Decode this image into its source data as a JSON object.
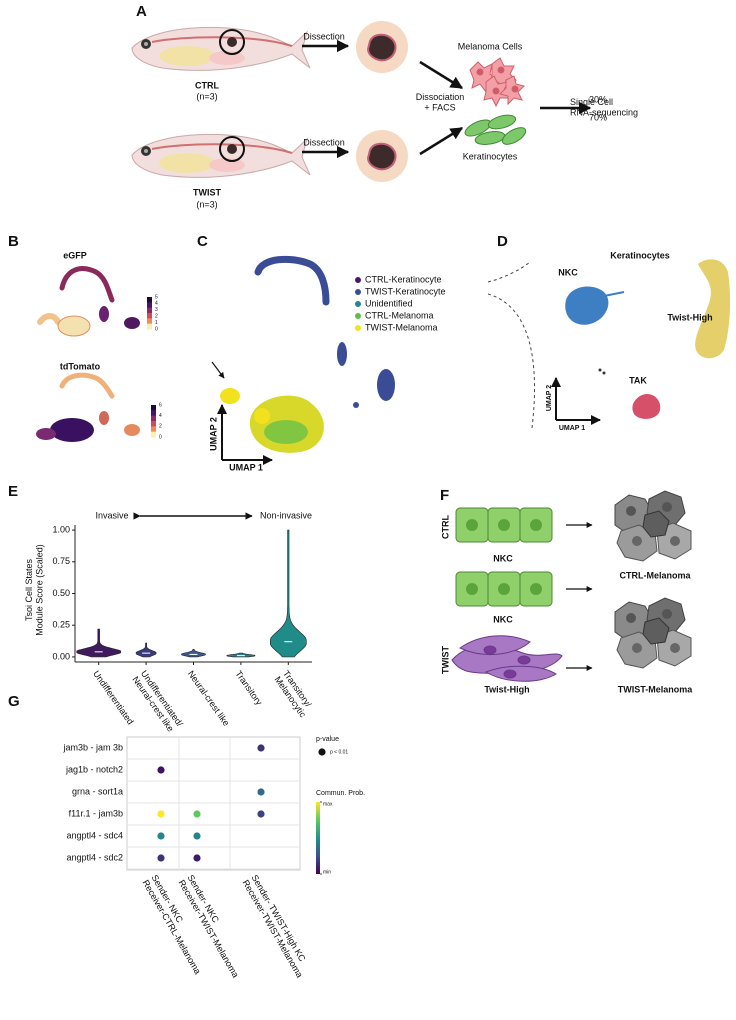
{
  "figure": {
    "A": {
      "label": "A",
      "ctrl": "CTRL",
      "ctrl_n": "(n=3)",
      "twist": "TWIST",
      "twist_n": "(n=3)",
      "dissection_1": "Dissection",
      "dissection_2": "Dissection",
      "dissociation": [
        "Dissociation",
        "+ FACS"
      ],
      "melanoma_cells": "Melanoma Cells",
      "keratinocytes": "Keratinocytes",
      "pct_melanoma": "30%",
      "pct_keratinocytes": "70%",
      "sequencing": [
        "Single Cell",
        "RNA-sequencing"
      ]
    },
    "B": {
      "label": "B",
      "egfp": "eGFP",
      "tdtomato": "tdTomato",
      "egfp_scale": [
        "5",
        "4",
        "3",
        "2",
        "1",
        "0"
      ],
      "tdtomato_scale": [
        "6",
        "4",
        "2",
        "0"
      ]
    },
    "C": {
      "label": "C",
      "umap1": "UMAP 1",
      "umap2": "UMAP 2",
      "legend": [
        {
          "name": "CTRL-Keratinocyte",
          "color": "#4a1868"
        },
        {
          "name": "TWIST-Keratinocyte",
          "color": "#3a4c96"
        },
        {
          "name": "Unidentified",
          "color": "#23898c"
        },
        {
          "name": "CTRL-Melanoma",
          "color": "#5cbf4a"
        },
        {
          "name": "TWIST-Melanoma",
          "color": "#f2e21e"
        }
      ]
    },
    "D": {
      "label": "D",
      "title": "Keratinocytes",
      "nkc": "NKC",
      "twist_high": "Twist-High",
      "tak": "TAK",
      "umap1": "UMAP 1",
      "umap2": "UMAP 2"
    },
    "E": {
      "label": "E"
    },
    "F": {
      "label": "F",
      "ctrl": "CTRL",
      "twist": "TWIST",
      "nkc_1": "NKC",
      "nkc_2": "NKC",
      "twist_high": "Twist-High",
      "ctrl_melanoma": "CTRL-Melanoma",
      "twist_melanoma": "TWIST-Melanoma"
    },
    "G": {
      "label": "G"
    }
  },
  "chart_data": [
    {
      "type": "violin",
      "ylabel": [
        "Tsoi Cell States",
        "Module Score (Scaled)"
      ],
      "annotations": [
        "Invasive",
        "Non-invasive"
      ],
      "categories": [
        "Undifferentiated",
        [
          "Undifferentiated/",
          "Neural-crest like"
        ],
        "Neural-crest like",
        "Transitory",
        [
          "Transitory/",
          "Melanocytic"
        ]
      ],
      "values": [
        0.22,
        0.11,
        0.06,
        0.03,
        1.0
      ],
      "medians": [
        0.04,
        0.03,
        0.02,
        0.01,
        0.12
      ],
      "colors": [
        "#3f1a5c",
        "#3b3a7c",
        "#3a5890",
        "#2b7b8b",
        "#1f8c8a"
      ],
      "ylim": [
        -0.04,
        1.04
      ],
      "yticks": [
        {
          "value": 0,
          "label": "0.00"
        },
        {
          "value": 0.25,
          "label": "0.25"
        },
        {
          "value": 0.5,
          "label": "0.50"
        },
        {
          "value": 0.75,
          "label": "0.75"
        },
        {
          "value": 1,
          "label": "1.00"
        }
      ]
    },
    {
      "type": "dot",
      "categories": [
        "jam3b - jam 3b",
        "jag1b - notch2",
        "grna - sort1a",
        "f11r.1 - jam3b",
        "angptl4 - sdc4",
        "angptl4 - sdc2"
      ],
      "x_categories": [
        [
          "Sender- NKC",
          "Receiver-CTRL-Melanoma"
        ],
        [
          "Sender- NKC",
          "Receiver-TWIST-Melanoma"
        ],
        [
          "Sender- TWIST-High KC",
          "Receiver-TWIST-Melanoma"
        ]
      ],
      "values": [
        [
          null,
          null,
          0.15
        ],
        [
          0.05,
          null,
          null
        ],
        [
          null,
          null,
          0.35
        ],
        [
          1.0,
          0.75,
          0.2
        ],
        [
          0.45,
          0.45,
          null
        ],
        [
          0.15,
          0.08,
          null
        ]
      ],
      "size_title": "p-value",
      "size_label": "p < 0.01",
      "color_title": "Commun. Prob.",
      "clim": [
        0,
        1
      ],
      "cticks": [
        {
          "value": 0,
          "label": "min"
        },
        {
          "value": 1,
          "label": "max"
        }
      ],
      "colormap": [
        "#440154",
        "#3b528b",
        "#21918c",
        "#5ec962",
        "#fde725"
      ]
    }
  ]
}
